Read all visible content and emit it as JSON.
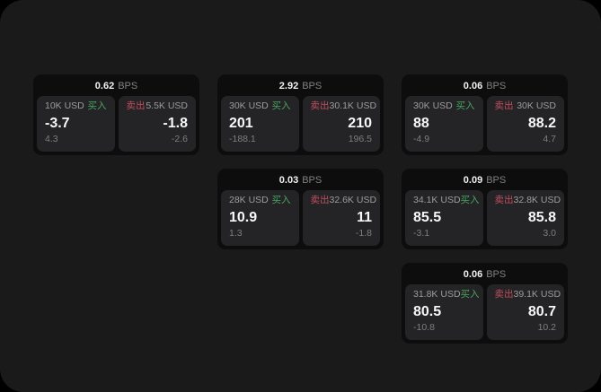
{
  "unit": "BPS",
  "labels": {
    "buy": "买入",
    "sell": "卖出"
  },
  "colors": {
    "buy": "#45a55e",
    "sell": "#c04e5f",
    "card_bg": "#0d0d0e",
    "panel_bg": "#242426",
    "window_bg": "#1a1a1b"
  },
  "cards": [
    {
      "bps": "0.62",
      "buy": {
        "amount": "10K USD",
        "value": "-3.7",
        "sub": "4.3"
      },
      "sell": {
        "amount": "5.5K USD",
        "value": "-1.8",
        "sub": "-2.6"
      }
    },
    {
      "bps": "2.92",
      "buy": {
        "amount": "30K USD",
        "value": "201",
        "sub": "-188.1"
      },
      "sell": {
        "amount": "30.1K USD",
        "value": "210",
        "sub": "196.5"
      }
    },
    {
      "bps": "0.06",
      "buy": {
        "amount": "30K USD",
        "value": "88",
        "sub": "-4.9"
      },
      "sell": {
        "amount": "30K USD",
        "value": "88.2",
        "sub": "4.7"
      }
    },
    {
      "bps": "0.03",
      "buy": {
        "amount": "28K USD",
        "value": "10.9",
        "sub": "1.3"
      },
      "sell": {
        "amount": "32.6K USD",
        "value": "11",
        "sub": "-1.8"
      }
    },
    {
      "bps": "0.09",
      "buy": {
        "amount": "34.1K USD",
        "value": "85.5",
        "sub": "-3.1"
      },
      "sell": {
        "amount": "32.8K USD",
        "value": "85.8",
        "sub": "3.0"
      }
    },
    {
      "bps": "0.06",
      "buy": {
        "amount": "31.8K USD",
        "value": "80.5",
        "sub": "-10.8"
      },
      "sell": {
        "amount": "39.1K USD",
        "value": "80.7",
        "sub": "10.2"
      }
    }
  ]
}
